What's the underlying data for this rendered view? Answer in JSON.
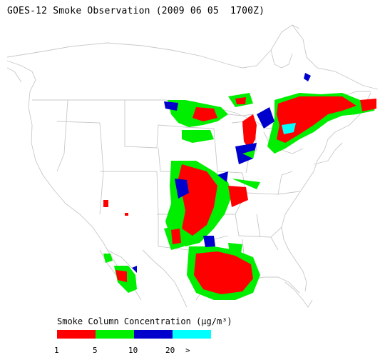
{
  "title": "GOES-12 Smoke Observation (2009 06 05  1700Z)",
  "legend": {
    "title": "Smoke Column Concentration (μg/m³)",
    "colors": [
      "#ff0000",
      "#00ee00",
      "#0000cc",
      "#00ffff"
    ],
    "ticks": [
      "1",
      "5",
      "10",
      "20",
      ">"
    ]
  },
  "colors": {
    "map_lines": "#c8c8c8",
    "background": "#ffffff"
  }
}
